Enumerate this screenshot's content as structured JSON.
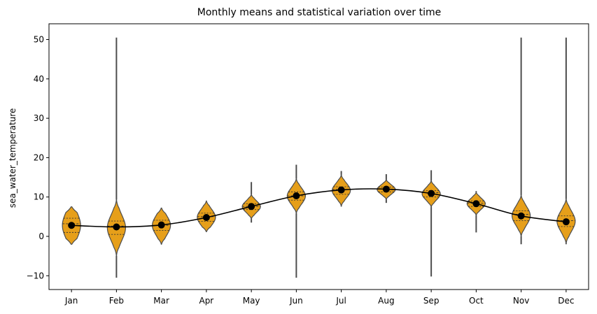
{
  "chart_data": {
    "type": "violin",
    "title": "Monthly means and statistical variation over time",
    "xlabel": "",
    "ylabel": "sea_water_temperature",
    "ylim": [
      -13.5,
      54
    ],
    "yticks": [
      -10,
      0,
      10,
      20,
      30,
      40,
      50
    ],
    "categories": [
      "Jan",
      "Feb",
      "Mar",
      "Apr",
      "May",
      "Jun",
      "Jul",
      "Aug",
      "Sep",
      "Oct",
      "Nov",
      "Dec"
    ],
    "means": [
      2.8,
      2.4,
      2.9,
      4.8,
      7.6,
      10.3,
      11.8,
      12.0,
      10.9,
      8.3,
      5.2,
      3.7
    ],
    "min": [
      -2.0,
      -10.5,
      -2.0,
      1.2,
      3.5,
      -10.5,
      7.6,
      8.5,
      -10.2,
      1.0,
      -2.0,
      -2.0
    ],
    "max": [
      7.5,
      50.5,
      7.2,
      9.0,
      13.8,
      18.2,
      16.6,
      15.8,
      16.8,
      11.5,
      50.5,
      50.5
    ],
    "q1": [
      1.0,
      0.5,
      1.5,
      3.8,
      6.8,
      9.2,
      10.7,
      11.3,
      10.0,
      7.6,
      4.0,
      2.5
    ],
    "median": [
      3.2,
      2.6,
      2.8,
      5.0,
      7.6,
      10.3,
      11.9,
      12.0,
      11.1,
      8.4,
      5.6,
      4.0
    ],
    "q3": [
      4.6,
      3.9,
      4.1,
      5.9,
      8.3,
      11.3,
      12.6,
      12.5,
      11.6,
      9.0,
      6.5,
      5.2
    ],
    "grid": false,
    "colors": {
      "violin_fill": "#E69F1A",
      "violin_edge": "#4d4d4d",
      "mean_line": "#000000",
      "mean_marker": "#000000"
    }
  }
}
